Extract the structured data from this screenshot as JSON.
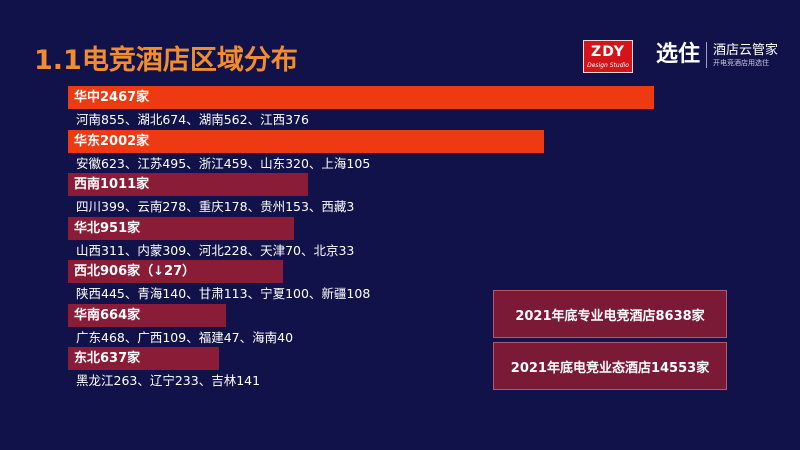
{
  "title": "1.1电竞酒店区域分布",
  "logo_zdy": {
    "main": "ZDY",
    "sub": "Design Studio",
    "color": "#d4141b"
  },
  "logo_brand": {
    "main": "选住",
    "line1": "酒店云管家",
    "line2": "开电竞酒店用选住"
  },
  "colors": {
    "background": "#12124a",
    "title": "#f28c2c",
    "bar_strong": "#ee3a12",
    "bar_weak": "#8a1c38"
  },
  "chart_data": {
    "type": "bar",
    "orientation": "horizontal",
    "categories": [
      "华中",
      "华东",
      "西南",
      "华北",
      "西北",
      "华南",
      "东北"
    ],
    "values": [
      2467,
      2002,
      1011,
      951,
      906,
      664,
      637
    ],
    "labels": [
      "华中2467家",
      "华东2002家",
      "西南1011家",
      "华北951家",
      "西北906家（↓27）",
      "华南664家",
      "东北637家"
    ],
    "details": [
      "河南855、湖北674、湖南562、江西376",
      "安徽623、江苏495、浙江459、山东320、上海105",
      "四川399、云南278、重庆178、贵州153、西藏3",
      "山西311、内蒙309、河北228、天津70、北京33",
      "陕西445、青海140、甘肃113、宁夏100、新疆108",
      "广东468、广西109、福建47、海南40",
      "黑龙江263、辽宁233、吉林141"
    ],
    "xlim": [
      0,
      2467
    ]
  },
  "summary": [
    "2021年底专业电竞酒店8638家",
    "2021年底电竞业态酒店14553家"
  ]
}
